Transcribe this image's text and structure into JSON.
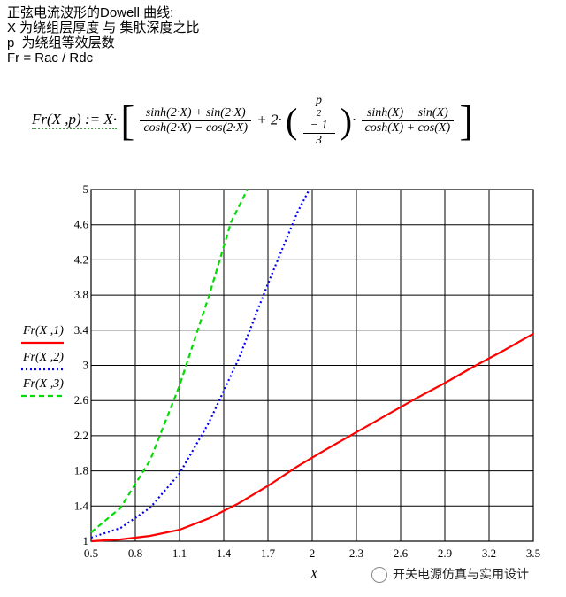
{
  "description": {
    "line1": "正弦电流波形的Dowell 曲线:",
    "line2": "X 为绕组层厚度 与 集肤深度之比",
    "line3": "p  为绕组等效层数",
    "line4": "Fr = Rac / Rdc"
  },
  "formula": {
    "lhs": "Fr(X ,p) := X·",
    "num1": "sinh(2·X) + sin(2·X)",
    "den1": "cosh(2·X) − cos(2·X)",
    "mid": "+ 2·",
    "num2": "p",
    "num2_exp": "2",
    "num2_rest": " − 1",
    "den2": "3",
    "dot": "·",
    "num3": "sinh(X) − sin(X)",
    "den3": "cosh(X) + cos(X)"
  },
  "watermark": "开关电源仿真与实用设计",
  "colors": {
    "series1": "#ff0000",
    "series2": "#0000ff",
    "series3": "#00dd00",
    "grid": "#000000"
  },
  "chart_data": {
    "type": "line",
    "xlabel": "X",
    "ylabel": "",
    "xlim": [
      0.5,
      3.5
    ],
    "ylim": [
      1,
      5
    ],
    "xticks": [
      "0.5",
      "0.8",
      "1.1",
      "1.4",
      "1.7",
      "2",
      "2.3",
      "2.6",
      "2.9",
      "3.2",
      "3.5"
    ],
    "yticks": [
      "1",
      "1.4",
      "1.8",
      "2.2",
      "2.6",
      "3",
      "3.4",
      "3.8",
      "4.2",
      "4.6",
      "5"
    ],
    "grid": true,
    "legend_position": "left",
    "series": [
      {
        "name": "Fr(X ,1)",
        "style": "solid",
        "x": [
          0.5,
          0.7,
          0.9,
          1.1,
          1.3,
          1.5,
          1.7,
          1.9,
          2.1,
          2.3,
          2.5,
          2.7,
          2.9,
          3.1,
          3.3,
          3.5
        ],
        "y": [
          1.0,
          1.02,
          1.06,
          1.13,
          1.26,
          1.43,
          1.63,
          1.85,
          2.05,
          2.24,
          2.43,
          2.62,
          2.8,
          2.99,
          3.17,
          3.36
        ]
      },
      {
        "name": "Fr(X ,2)",
        "style": "dotted",
        "x": [
          0.5,
          0.7,
          0.9,
          1.1,
          1.3,
          1.5,
          1.7,
          1.9,
          1.98
        ],
        "y": [
          1.04,
          1.15,
          1.38,
          1.77,
          2.35,
          3.07,
          3.93,
          4.74,
          5.0
        ]
      },
      {
        "name": "Fr(X ,3)",
        "style": "dashed",
        "x": [
          0.5,
          0.7,
          0.9,
          1.1,
          1.3,
          1.45,
          1.56
        ],
        "y": [
          1.1,
          1.38,
          1.92,
          2.77,
          3.79,
          4.63,
          5.0
        ]
      }
    ]
  }
}
